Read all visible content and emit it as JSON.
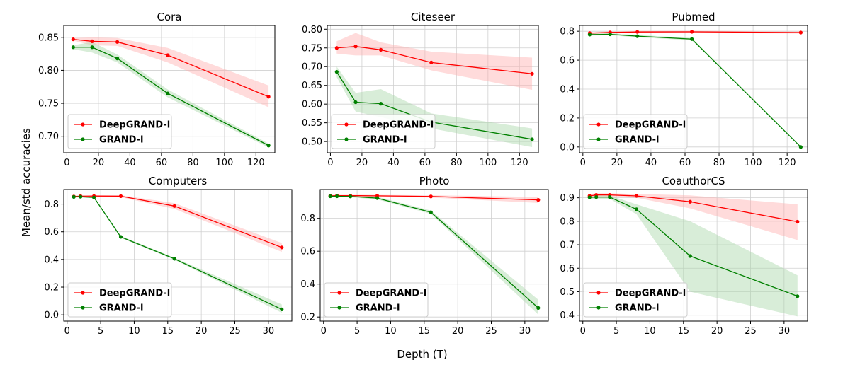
{
  "figure": {
    "xlabel": "Depth (T)",
    "ylabel": "Mean/std accuracies"
  },
  "colors": {
    "deepgrand": "#ff0000",
    "grand": "#008000",
    "deepgrand_band": "#ffb0b0",
    "grand_band": "#a8d8a8",
    "grid": "#d0d0d0"
  },
  "chart_data": [
    {
      "type": "line",
      "title": "Cora",
      "xlim": [
        -2,
        132
      ],
      "ylim": [
        0.675,
        0.868
      ],
      "xticks": [
        0,
        20,
        40,
        60,
        80,
        100,
        120
      ],
      "yticks": [
        0.7,
        0.75,
        0.8,
        0.85
      ],
      "ytick_labels": [
        "0.70",
        "0.75",
        "0.80",
        "0.85"
      ],
      "legend_loc": "lower-left",
      "series": [
        {
          "name": "DeepGRAND-l",
          "color_key": "deepgrand",
          "x": [
            4,
            16,
            32,
            64,
            128
          ],
          "y": [
            0.847,
            0.844,
            0.843,
            0.823,
            0.76
          ],
          "band": [
            [
              0.845,
              0.849
            ],
            [
              0.838,
              0.85
            ],
            [
              0.837,
              0.849
            ],
            [
              0.812,
              0.834
            ],
            [
              0.744,
              0.777
            ]
          ]
        },
        {
          "name": "GRAND-l",
          "color_key": "grand",
          "x": [
            4,
            16,
            32,
            64,
            128
          ],
          "y": [
            0.835,
            0.835,
            0.818,
            0.765,
            0.686
          ],
          "band": [
            [
              0.832,
              0.838
            ],
            [
              0.827,
              0.843
            ],
            [
              0.812,
              0.824
            ],
            [
              0.759,
              0.771
            ],
            [
              0.683,
              0.689
            ]
          ]
        }
      ]
    },
    {
      "type": "line",
      "title": "Citeseer",
      "xlim": [
        -2,
        132
      ],
      "ylim": [
        0.47,
        0.81
      ],
      "xticks": [
        0,
        20,
        40,
        60,
        80,
        100,
        120
      ],
      "yticks": [
        0.5,
        0.55,
        0.6,
        0.65,
        0.7,
        0.75,
        0.8
      ],
      "ytick_labels": [
        "0.50",
        "0.55",
        "0.60",
        "0.65",
        "0.70",
        "0.75",
        "0.80"
      ],
      "legend_loc": "lower-left",
      "series": [
        {
          "name": "DeepGRAND-l",
          "color_key": "deepgrand",
          "x": [
            4,
            16,
            32,
            64,
            128
          ],
          "y": [
            0.75,
            0.754,
            0.745,
            0.711,
            0.681
          ],
          "band": [
            [
              0.735,
              0.768
            ],
            [
              0.73,
              0.79
            ],
            [
              0.73,
              0.765
            ],
            [
              0.69,
              0.74
            ],
            [
              0.638,
              0.724
            ]
          ]
        },
        {
          "name": "GRAND-l",
          "color_key": "grand",
          "x": [
            4,
            16,
            32,
            64,
            128
          ],
          "y": [
            0.686,
            0.605,
            0.601,
            0.552,
            0.506
          ],
          "band": [
            [
              0.672,
              0.7
            ],
            [
              0.58,
              0.63
            ],
            [
              0.565,
              0.64
            ],
            [
              0.535,
              0.575
            ],
            [
              0.485,
              0.535
            ]
          ]
        }
      ]
    },
    {
      "type": "line",
      "title": "Pubmed",
      "xlim": [
        -2,
        132
      ],
      "ylim": [
        -0.04,
        0.84
      ],
      "xticks": [
        0,
        20,
        40,
        60,
        80,
        100,
        120
      ],
      "yticks": [
        0.0,
        0.2,
        0.4,
        0.6,
        0.8
      ],
      "ytick_labels": [
        "0.0",
        "0.2",
        "0.4",
        "0.6",
        "0.8"
      ],
      "legend_loc": "lower-left",
      "series": [
        {
          "name": "DeepGRAND-l",
          "color_key": "deepgrand",
          "x": [
            4,
            16,
            32,
            64,
            128
          ],
          "y": [
            0.787,
            0.792,
            0.795,
            0.796,
            0.791
          ],
          "band": [
            [
              0.78,
              0.794
            ],
            [
              0.785,
              0.799
            ],
            [
              0.788,
              0.802
            ],
            [
              0.789,
              0.803
            ],
            [
              0.784,
              0.798
            ]
          ]
        },
        {
          "name": "GRAND-l",
          "color_key": "grand",
          "x": [
            4,
            16,
            32,
            64,
            128
          ],
          "y": [
            0.777,
            0.779,
            0.766,
            0.746,
            0.0
          ],
          "band": [
            [
              0.77,
              0.784
            ],
            [
              0.772,
              0.786
            ],
            [
              0.758,
              0.774
            ],
            [
              0.738,
              0.754
            ],
            [
              0.0,
              0.0
            ]
          ]
        }
      ]
    },
    {
      "type": "line",
      "title": "Computers",
      "xlim": [
        -0.5,
        33.5
      ],
      "ylim": [
        -0.045,
        0.905
      ],
      "xticks": [
        0,
        5,
        10,
        15,
        20,
        25,
        30
      ],
      "yticks": [
        0.0,
        0.2,
        0.4,
        0.6,
        0.8
      ],
      "ytick_labels": [
        "0.0",
        "0.2",
        "0.4",
        "0.6",
        "0.8"
      ],
      "legend_loc": "lower-left",
      "series": [
        {
          "name": "DeepGRAND-l",
          "color_key": "deepgrand",
          "x": [
            1,
            2,
            4,
            8,
            16,
            32
          ],
          "y": [
            0.855,
            0.857,
            0.858,
            0.857,
            0.786,
            0.487
          ],
          "band": [
            [
              0.85,
              0.86
            ],
            [
              0.852,
              0.862
            ],
            [
              0.853,
              0.863
            ],
            [
              0.85,
              0.864
            ],
            [
              0.765,
              0.807
            ],
            [
              0.455,
              0.519
            ]
          ]
        },
        {
          "name": "GRAND-l",
          "color_key": "grand",
          "x": [
            1,
            2,
            4,
            8,
            16,
            32
          ],
          "y": [
            0.852,
            0.853,
            0.848,
            0.563,
            0.405,
            0.04
          ],
          "band": [
            [
              0.847,
              0.857
            ],
            [
              0.848,
              0.858
            ],
            [
              0.843,
              0.853
            ],
            [
              0.556,
              0.57
            ],
            [
              0.398,
              0.412
            ],
            [
              0.015,
              0.075
            ]
          ]
        }
      ]
    },
    {
      "type": "line",
      "title": "Photo",
      "xlim": [
        -0.5,
        33.5
      ],
      "ylim": [
        0.175,
        0.975
      ],
      "xticks": [
        0,
        5,
        10,
        15,
        20,
        25,
        30
      ],
      "yticks": [
        0.2,
        0.4,
        0.6,
        0.8
      ],
      "ytick_labels": [
        "0.2",
        "0.4",
        "0.6",
        "0.8"
      ],
      "legend_loc": "lower-left",
      "series": [
        {
          "name": "DeepGRAND-l",
          "color_key": "deepgrand",
          "x": [
            1,
            2,
            4,
            8,
            16,
            32
          ],
          "y": [
            0.937,
            0.938,
            0.938,
            0.937,
            0.933,
            0.912
          ],
          "band": [
            [
              0.932,
              0.942
            ],
            [
              0.933,
              0.943
            ],
            [
              0.933,
              0.943
            ],
            [
              0.932,
              0.942
            ],
            [
              0.926,
              0.94
            ],
            [
              0.894,
              0.93
            ]
          ]
        },
        {
          "name": "GRAND-l",
          "color_key": "grand",
          "x": [
            1,
            2,
            4,
            8,
            16,
            32
          ],
          "y": [
            0.934,
            0.934,
            0.933,
            0.923,
            0.837,
            0.255
          ],
          "band": [
            [
              0.929,
              0.939
            ],
            [
              0.929,
              0.939
            ],
            [
              0.928,
              0.938
            ],
            [
              0.915,
              0.931
            ],
            [
              0.827,
              0.847
            ],
            [
              0.215,
              0.305
            ]
          ]
        }
      ]
    },
    {
      "type": "line",
      "title": "CoauthorCS",
      "xlim": [
        -0.5,
        33.5
      ],
      "ylim": [
        0.375,
        0.935
      ],
      "xticks": [
        0,
        5,
        10,
        15,
        20,
        25,
        30
      ],
      "yticks": [
        0.4,
        0.5,
        0.6,
        0.7,
        0.8,
        0.9
      ],
      "ytick_labels": [
        "0.4",
        "0.5",
        "0.6",
        "0.7",
        "0.8",
        "0.9"
      ],
      "legend_loc": "lower-left",
      "series": [
        {
          "name": "DeepGRAND-l",
          "color_key": "deepgrand",
          "x": [
            1,
            2,
            4,
            8,
            16,
            32
          ],
          "y": [
            0.908,
            0.912,
            0.912,
            0.908,
            0.883,
            0.798
          ],
          "band": [
            [
              0.9,
              0.916
            ],
            [
              0.905,
              0.919
            ],
            [
              0.905,
              0.919
            ],
            [
              0.9,
              0.916
            ],
            [
              0.855,
              0.91
            ],
            [
              0.72,
              0.872
            ]
          ]
        },
        {
          "name": "GRAND-l",
          "color_key": "grand",
          "x": [
            1,
            2,
            4,
            8,
            16,
            32
          ],
          "y": [
            0.902,
            0.903,
            0.903,
            0.851,
            0.652,
            0.481
          ],
          "band": [
            [
              0.896,
              0.908
            ],
            [
              0.896,
              0.91
            ],
            [
              0.896,
              0.91
            ],
            [
              0.83,
              0.872
            ],
            [
              0.5,
              0.8
            ],
            [
              0.395,
              0.57
            ]
          ]
        }
      ]
    }
  ]
}
